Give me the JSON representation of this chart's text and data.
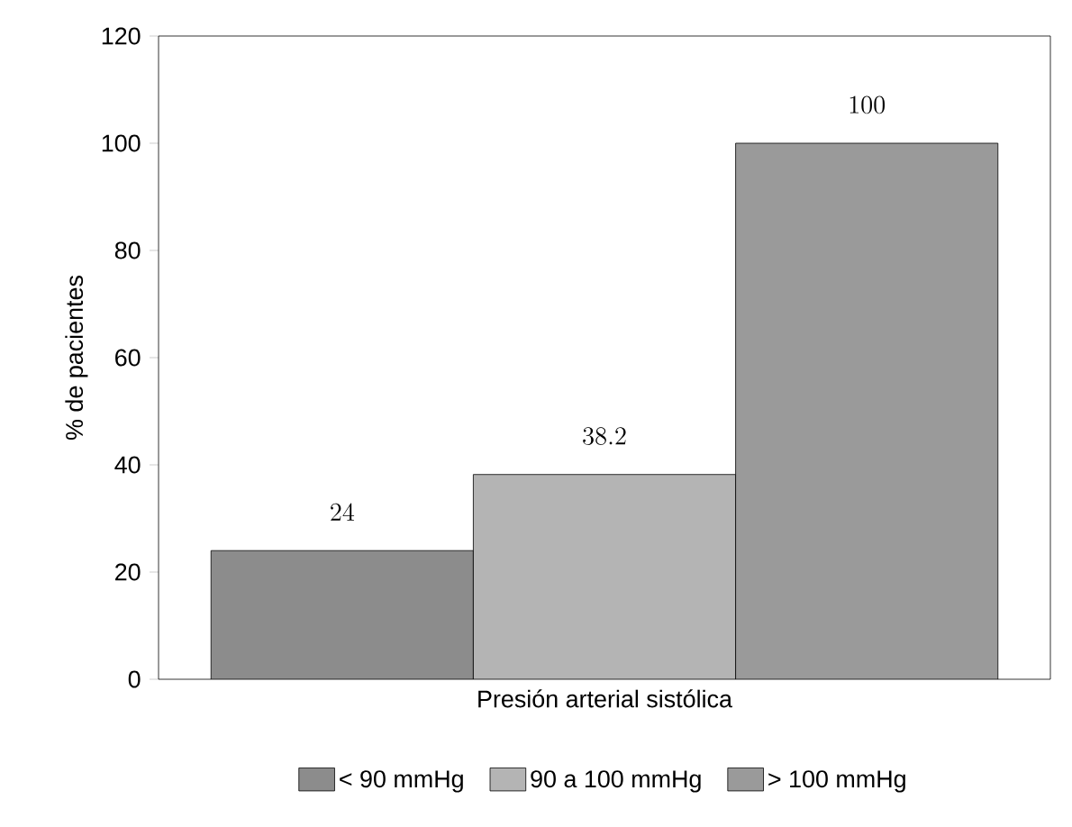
{
  "chart_data": {
    "type": "bar",
    "categories": [
      null
    ],
    "xlabel": "Presión arterial sistólica",
    "ylabel": "% de pacientes",
    "ylim": [
      0,
      120
    ],
    "yticks": [
      0,
      20,
      40,
      60,
      80,
      100,
      120
    ],
    "data_labels": true,
    "legend": "bottom",
    "series": [
      {
        "name": "< 90 mmHg",
        "color": "#8c8c8c",
        "values": [
          24
        ]
      },
      {
        "name": "90 a 100 mmHg",
        "color": "#b4b4b4",
        "values": [
          38.2
        ]
      },
      {
        "name": "> 100 mmHg",
        "color": "#9a9a9a",
        "values": [
          100
        ]
      }
    ]
  }
}
